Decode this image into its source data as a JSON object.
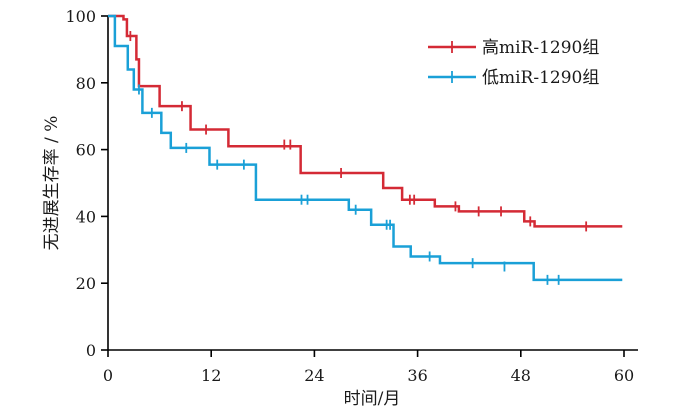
{
  "chart_data": {
    "type": "line",
    "xlabel": "时间/月",
    "ylabel": "无进展生存率 / %",
    "xlim": [
      0,
      60
    ],
    "ylim": [
      0,
      100
    ],
    "x_ticks": [
      "0",
      "12",
      "24",
      "36",
      "48",
      "60"
    ],
    "y_ticks": [
      "0",
      "20",
      "40",
      "60",
      "80",
      "100"
    ],
    "legend_position": "top-right",
    "step_curve": true,
    "series": [
      {
        "name": "高miR-1290组",
        "color": "#d42a35",
        "steps": [
          [
            0,
            100
          ],
          [
            1.8,
            99
          ],
          [
            2.2,
            94
          ],
          [
            3.3,
            87
          ],
          [
            3.6,
            79
          ],
          [
            6,
            73
          ],
          [
            9.6,
            66
          ],
          [
            14,
            61
          ],
          [
            22.4,
            53
          ],
          [
            32,
            48.5
          ],
          [
            34.2,
            45
          ],
          [
            38,
            43
          ],
          [
            40.8,
            41.5
          ],
          [
            48.4,
            38.5
          ],
          [
            49.6,
            37
          ],
          [
            59.8,
            37
          ]
        ],
        "censored": [
          [
            2.6,
            94
          ],
          [
            8.6,
            73
          ],
          [
            11.4,
            66
          ],
          [
            20.5,
            61.5
          ],
          [
            21.2,
            61.5
          ],
          [
            27.1,
            53
          ],
          [
            35.1,
            45
          ],
          [
            35.6,
            45
          ],
          [
            40.4,
            43
          ],
          [
            43.1,
            41.5
          ],
          [
            45.7,
            41.5
          ],
          [
            49.1,
            38.5
          ],
          [
            55.6,
            37
          ]
        ]
      },
      {
        "name": "低miR-1290组",
        "color": "#1aa0d7",
        "steps": [
          [
            0,
            100
          ],
          [
            0.8,
            91
          ],
          [
            2.3,
            84
          ],
          [
            3,
            78
          ],
          [
            4,
            71
          ],
          [
            6.2,
            65
          ],
          [
            7.3,
            60.5
          ],
          [
            11.8,
            55.5
          ],
          [
            17.2,
            45
          ],
          [
            28,
            42
          ],
          [
            30.6,
            37.5
          ],
          [
            33.2,
            31
          ],
          [
            35.2,
            28
          ],
          [
            38.6,
            26
          ],
          [
            49.5,
            21
          ],
          [
            59.8,
            21
          ]
        ],
        "censored": [
          [
            3.6,
            78
          ],
          [
            5.1,
            71
          ],
          [
            9.1,
            60.5
          ],
          [
            12.7,
            55.5
          ],
          [
            15.8,
            55.5
          ],
          [
            22.5,
            45
          ],
          [
            23.2,
            45
          ],
          [
            28.8,
            42
          ],
          [
            32.4,
            37.5
          ],
          [
            32.8,
            37.5
          ],
          [
            37.4,
            28
          ],
          [
            42.4,
            26
          ],
          [
            46.1,
            25
          ],
          [
            51.1,
            21
          ],
          [
            52.4,
            21
          ]
        ]
      }
    ]
  }
}
